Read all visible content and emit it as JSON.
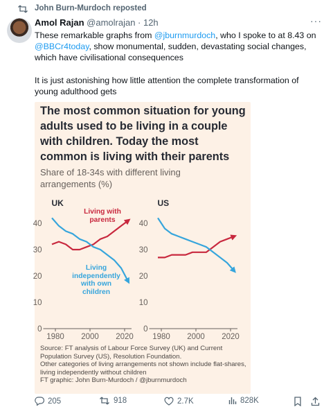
{
  "repost": "John Burn-Murdoch reposted",
  "author": {
    "name": "Amol Rajan",
    "handle": "@amolrajan · 12h"
  },
  "text": {
    "paragraph1": [
      "These remarkable graphs from ",
      "@jburnmurdoch",
      ", who I spoke to at 8.43 on ",
      "@BBCr4today",
      ", show monumental, sudden, devastating social changes, which have civilisational consequences"
    ],
    "paragraph2": "It is just astonishing how little attention the complete transformation of young adulthood gets"
  },
  "figure": {
    "title": "The most common situation for young adults used to be living in a couple with children. Today the most common is living with their parents",
    "subtitle": "Share of 18-34s with different living arrangements (%)",
    "source": [
      "Source: FT analysis of Labour Force Survey (UK) and Current Population Survey (US), Resolution Foundation.",
      "Other categories of living arrangements not shown include flat-shares, living independently without children",
      "FT graphic: John Burn-Murdoch / @jburnmurdoch"
    ]
  },
  "chart_data": [
    {
      "type": "line",
      "title": "UK",
      "x": [
        1978,
        1982,
        1986,
        1990,
        1994,
        1998,
        2002,
        2006,
        2010,
        2014,
        2018,
        2022
      ],
      "xlim": [
        1977,
        2024
      ],
      "xticks": [
        1980,
        2000,
        2020
      ],
      "ylim": [
        0,
        44
      ],
      "yticks": [
        0,
        10,
        20,
        30,
        40
      ],
      "grid": false,
      "series": [
        {
          "name": "Living with parents",
          "color": "#c8283e",
          "values": [
            32,
            33,
            32,
            30,
            30,
            31,
            32,
            34,
            35,
            37,
            39,
            41
          ]
        },
        {
          "name": "Living independently with own children",
          "color": "#36a5dc",
          "values": [
            42,
            39,
            37,
            36,
            34,
            33,
            31,
            30,
            28,
            26,
            23,
            18
          ]
        }
      ]
    },
    {
      "type": "line",
      "title": "US",
      "x": [
        1978,
        1982,
        1986,
        1990,
        1994,
        1998,
        2002,
        2006,
        2010,
        2014,
        2018,
        2022
      ],
      "xlim": [
        1977,
        2024
      ],
      "xticks": [
        1980,
        2000,
        2020
      ],
      "ylim": [
        0,
        44
      ],
      "yticks": [
        0,
        10,
        20,
        30,
        40
      ],
      "grid": false,
      "series": [
        {
          "color": "#c8283e",
          "values": [
            27,
            27,
            28,
            28,
            28,
            29,
            29,
            29,
            31,
            33,
            34,
            35
          ]
        },
        {
          "color": "#36a5dc",
          "values": [
            42,
            38,
            36,
            35,
            34,
            33,
            32,
            31,
            29,
            27,
            25,
            22
          ]
        }
      ]
    }
  ],
  "actions": {
    "replies": "205",
    "reposts": "918",
    "likes": "2.7K",
    "views": "828K"
  }
}
